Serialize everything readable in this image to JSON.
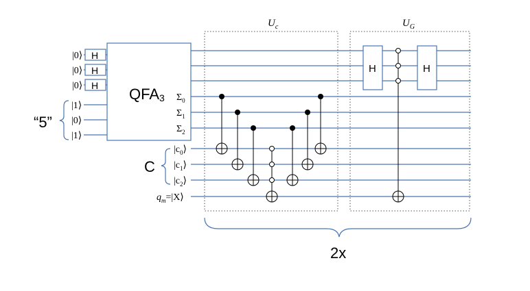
{
  "labels": {
    "uc": "U",
    "uc_sub": "c",
    "ug": "U",
    "ug_sub": "G",
    "qfa": "QFA",
    "qfa_sub": "3",
    "h": "H",
    "five": "“5”",
    "c_reg": "C",
    "repeat": "2x",
    "qm": "q",
    "qm_sub": "m",
    "qm_rest": "=|X⟩"
  },
  "input_kets": [
    "|0⟩",
    "|0⟩",
    "|0⟩"
  ],
  "five_kets": [
    "|1⟩",
    "|0⟩",
    "|1⟩"
  ],
  "sigma_labels": [
    {
      "base": "Σ",
      "sub": "0"
    },
    {
      "base": "Σ",
      "sub": "1"
    },
    {
      "base": "Σ",
      "sub": "2"
    }
  ],
  "c_labels": [
    {
      "base": "|c",
      "sub": "0",
      "close": "⟩"
    },
    {
      "base": "|c",
      "sub": "1",
      "close": "⟩"
    },
    {
      "base": "|c",
      "sub": "2",
      "close": "⟩"
    }
  ]
}
